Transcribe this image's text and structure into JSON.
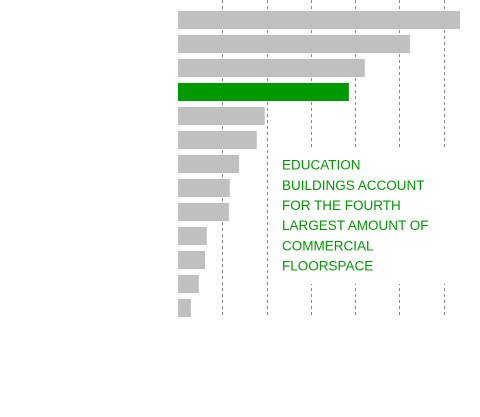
{
  "chart_data": {
    "type": "bar",
    "orientation": "horizontal",
    "categories": [
      null,
      null,
      null,
      null,
      null,
      null,
      null,
      null,
      null,
      null,
      null,
      null,
      null
    ],
    "values": [
      6.37,
      5.24,
      4.22,
      3.86,
      1.96,
      1.78,
      1.38,
      1.17,
      1.15,
      0.65,
      0.61,
      0.47,
      0.29
    ],
    "colors": [
      "#c0c0c0",
      "#c0c0c0",
      "#c0c0c0",
      "#009900",
      "#c0c0c0",
      "#c0c0c0",
      "#c0c0c0",
      "#c0c0c0",
      "#c0c0c0",
      "#c0c0c0",
      "#c0c0c0",
      "#c0c0c0",
      "#c0c0c0"
    ],
    "xlim": [
      0,
      6.8
    ],
    "xticks": [
      1,
      2,
      3,
      4,
      5,
      6
    ],
    "grid": true,
    "annotation": {
      "color": "#009900",
      "lines": [
        "EDUCATION",
        "BUILDINGS ACCOUNT",
        "FOR THE FOURTH",
        "LARGEST AMOUNT OF",
        "COMMERCIAL",
        "FLOORSPACE"
      ]
    }
  }
}
